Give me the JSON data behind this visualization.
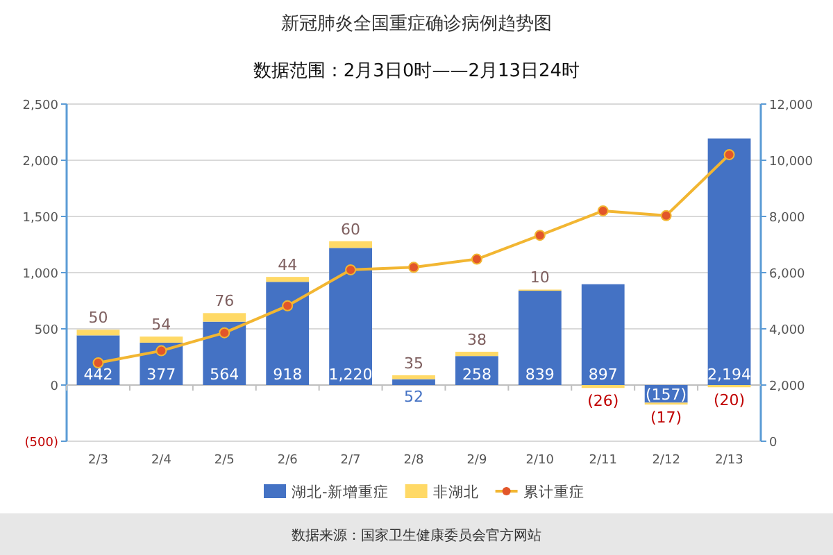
{
  "chart_data": {
    "type": "bar",
    "title": "新冠肺炎全国重症确诊病例趋势图",
    "subtitle": "数据范围：2月3日0时——2月13日24时",
    "categories": [
      "2/3",
      "2/4",
      "2/5",
      "2/6",
      "2/7",
      "2/8",
      "2/9",
      "2/10",
      "2/11",
      "2/12",
      "2/13"
    ],
    "stacked": true,
    "series": [
      {
        "name": "湖北-新增重症",
        "type": "bar",
        "color": "#4472c4",
        "values": [
          442,
          377,
          564,
          918,
          1220,
          52,
          258,
          839,
          897,
          -157,
          2194
        ],
        "value_labels": [
          "442",
          "377",
          "564",
          "918",
          "1,220",
          "52",
          "258",
          "839",
          "897",
          "(157)",
          "2,194"
        ]
      },
      {
        "name": "非湖北",
        "type": "bar",
        "color": "#ffd966",
        "values": [
          50,
          54,
          76,
          44,
          60,
          35,
          38,
          10,
          -26,
          -17,
          -20
        ],
        "value_labels": [
          "50",
          "54",
          "76",
          "44",
          "60",
          "35",
          "38",
          "10",
          "(26)",
          "(17)",
          "(20)"
        ]
      },
      {
        "name": "累计重症",
        "type": "line",
        "axis": "y2",
        "marker": "circle",
        "color": "#f2b632",
        "values": [
          2790,
          3220,
          3860,
          4820,
          6100,
          6190,
          6480,
          7330,
          8200,
          8030,
          10200
        ]
      }
    ],
    "ylim": [
      -500,
      2500
    ],
    "yticks": [
      {
        "value": -500,
        "label": "(500)"
      },
      0,
      500,
      {
        "value": 1000,
        "label": "1,000"
      },
      {
        "value": 1500,
        "label": "1,500"
      },
      {
        "value": 2000,
        "label": "2,000"
      },
      {
        "value": 2500,
        "label": "2,500"
      }
    ],
    "y2lim": [
      0,
      12000
    ],
    "y2ticks": [
      0,
      {
        "value": 2000,
        "label": "2,000"
      },
      {
        "value": 4000,
        "label": "4,000"
      },
      {
        "value": 6000,
        "label": "6,000"
      },
      {
        "value": 8000,
        "label": "8,000"
      },
      {
        "value": 10000,
        "label": "10,000"
      },
      {
        "value": 12000,
        "label": "12,000"
      }
    ],
    "grid": "y",
    "legend": "bottom",
    "annotations": [
      "数据来源：国家卫生健康委员会官方网站"
    ]
  }
}
